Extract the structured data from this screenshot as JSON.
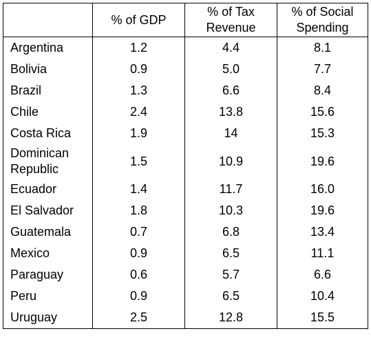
{
  "table": {
    "headers": [
      "",
      "% of GDP",
      "% of Tax Revenue",
      "% of Social Spending"
    ],
    "rows": [
      {
        "country": "Argentina",
        "gdp": "1.2",
        "tax": "4.4",
        "social": "8.1"
      },
      {
        "country": "Bolivia",
        "gdp": "0.9",
        "tax": "5.0",
        "social": "7.7"
      },
      {
        "country": "Brazil",
        "gdp": "1.3",
        "tax": "6.6",
        "social": "8.4"
      },
      {
        "country": "Chile",
        "gdp": "2.4",
        "tax": "13.8",
        "social": "15.6"
      },
      {
        "country": "Costa Rica",
        "gdp": "1.9",
        "tax": "14",
        "social": "15.3"
      },
      {
        "country": "Dominican Republic",
        "gdp": "1.5",
        "tax": "10.9",
        "social": "19.6"
      },
      {
        "country": "Ecuador",
        "gdp": "1.4",
        "tax": "11.7",
        "social": "16.0"
      },
      {
        "country": "El Salvador",
        "gdp": "1.8",
        "tax": "10.3",
        "social": "19.6"
      },
      {
        "country": "Guatemala",
        "gdp": "0.7",
        "tax": "6.8",
        "social": "13.4"
      },
      {
        "country": "Mexico",
        "gdp": "0.9",
        "tax": "6.5",
        "social": "11.1"
      },
      {
        "country": "Paraguay",
        "gdp": "0.6",
        "tax": "5.7",
        "social": "6.6"
      },
      {
        "country": "Peru",
        "gdp": "0.9",
        "tax": "6.5",
        "social": "10.4"
      },
      {
        "country": "Uruguay",
        "gdp": "2.5",
        "tax": "12.8",
        "social": "15.5"
      }
    ]
  }
}
